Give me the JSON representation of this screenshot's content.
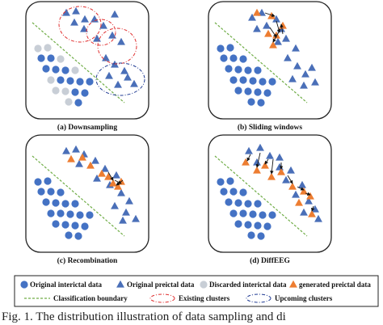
{
  "panels": [
    {
      "id": "a",
      "caption": "(a) Downsampling"
    },
    {
      "id": "b",
      "caption": "(b) Sliding windows"
    },
    {
      "id": "c",
      "caption": "(c) Recombination"
    },
    {
      "id": "d",
      "caption": "(d) DiffEEG"
    }
  ],
  "legend": {
    "interictal": "Original interictal data",
    "preictal": "Original preictal data",
    "discarded": "Discarded interictal data",
    "generated": "generated preictal data",
    "boundary": "Classification boundary",
    "existing": "Existing clusters",
    "upcoming": "Upcoming clusters"
  },
  "colors": {
    "interictal": "#4472c4",
    "preictal": "#4a6fb8",
    "discarded": "#c8ced6",
    "generated": "#ed7d31",
    "boundary": "#70ad47",
    "existing": "#e03030",
    "upcoming": "#1f3a93"
  },
  "caption_fragment": "Fig. 1.   The distribution illustration of data sampling and di"
}
